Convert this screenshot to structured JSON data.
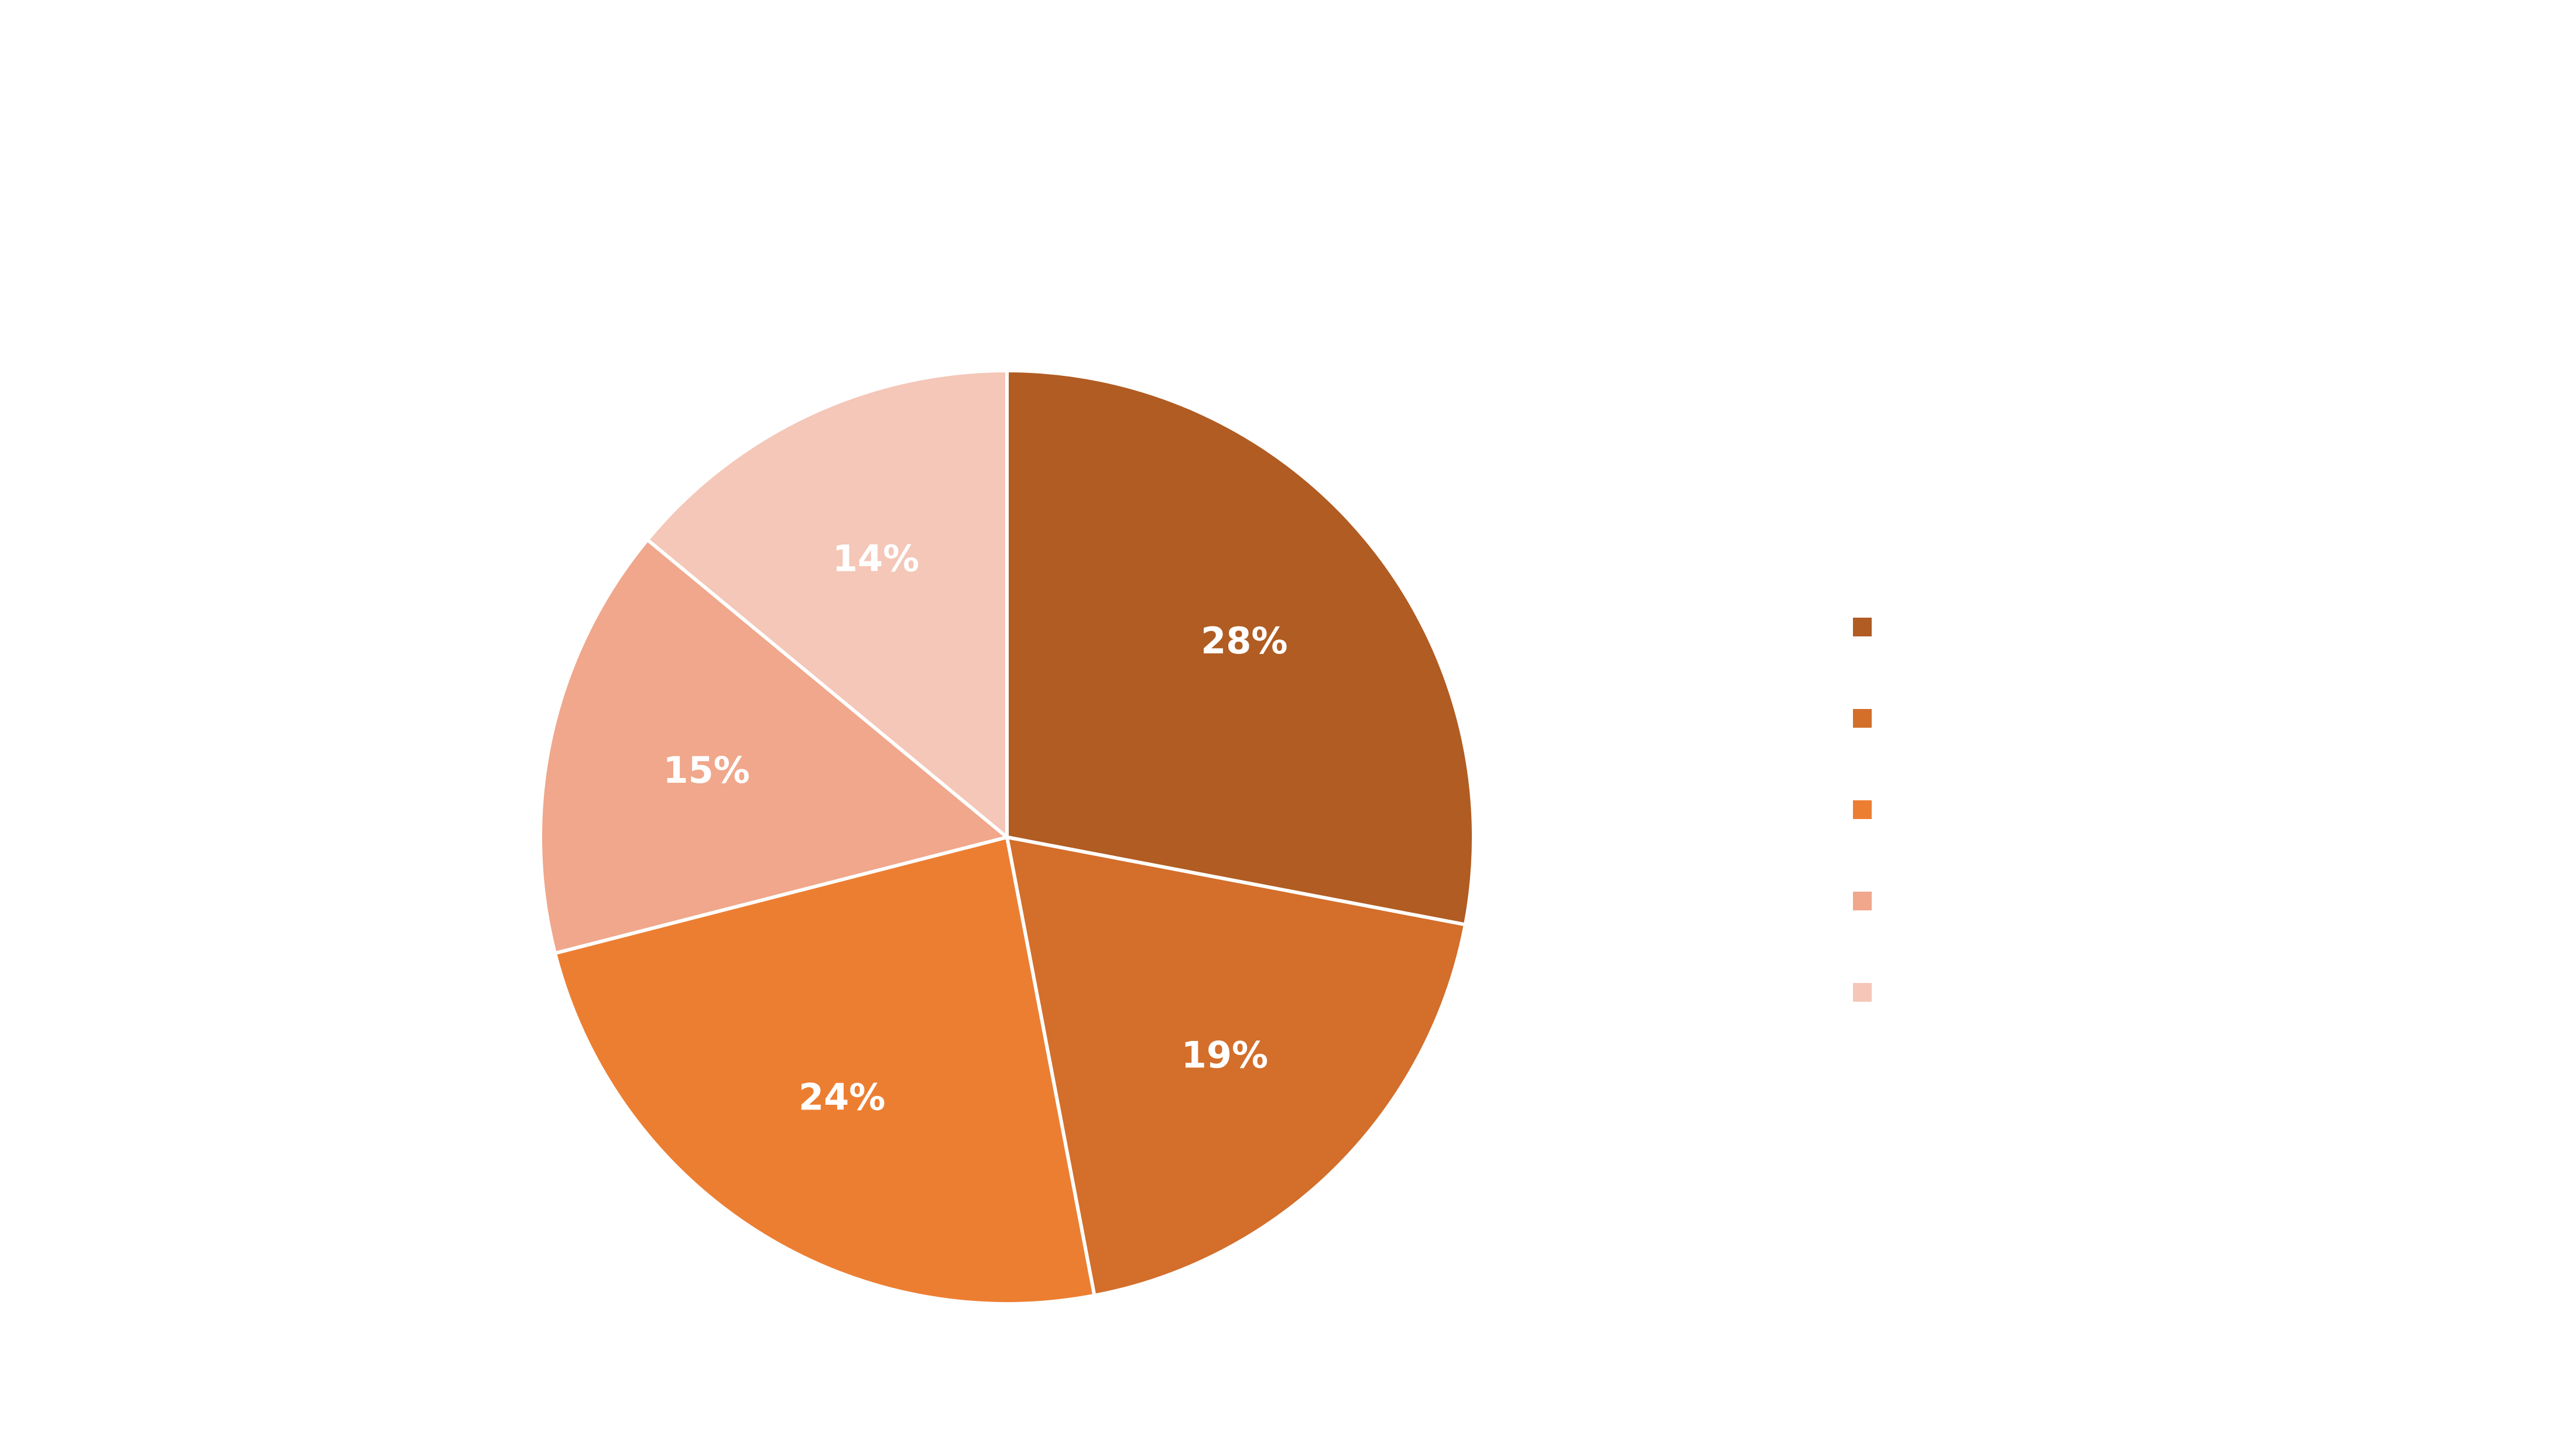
{
  "chart_data": {
    "type": "pie",
    "title": "",
    "values": [
      28,
      19,
      24,
      15,
      14
    ],
    "labels": [
      "28%",
      "19%",
      "24%",
      "15%",
      "14%"
    ],
    "colors": [
      "#B15C22",
      "#D36E2B",
      "#EC7E32",
      "#F0A78B",
      "#F4C7B8"
    ],
    "start_angle_deg": 0,
    "direction": "clockwise",
    "slice_border_color": "#ffffff",
    "legend": {
      "position": "right",
      "entries": [
        "",
        "",
        "",
        "",
        ""
      ]
    }
  }
}
